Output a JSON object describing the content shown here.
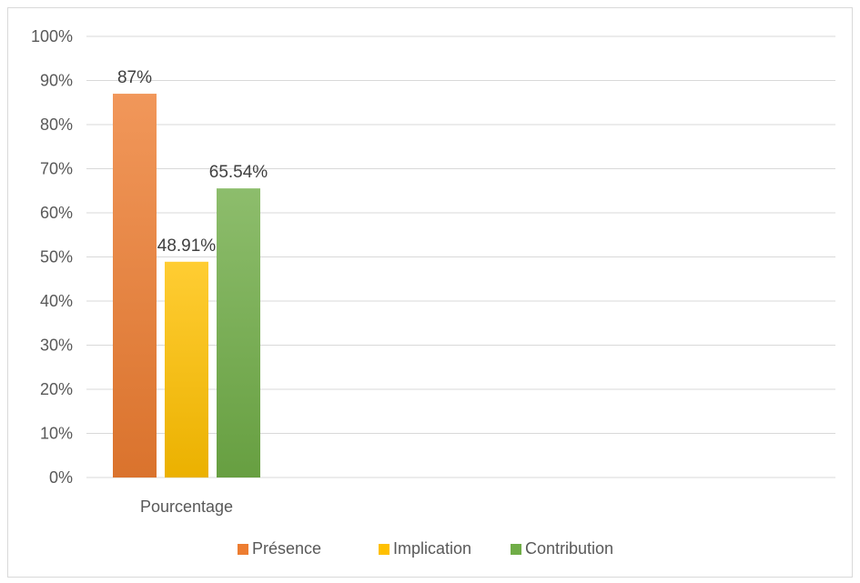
{
  "chart_data": {
    "type": "bar",
    "categories": [
      "Pourcentage"
    ],
    "series": [
      {
        "name": "Présence",
        "values": [
          87
        ],
        "label": "87%",
        "color": "#ed7d31"
      },
      {
        "name": "Implication",
        "values": [
          48.91
        ],
        "label": "48.91%",
        "color": "#ffc000"
      },
      {
        "name": "Contribution",
        "values": [
          65.54
        ],
        "label": "65.54%",
        "color": "#70ad47"
      }
    ],
    "y_ticks": [
      "0%",
      "10%",
      "20%",
      "30%",
      "40%",
      "50%",
      "60%",
      "70%",
      "80%",
      "90%",
      "100%"
    ],
    "ylim": [
      0,
      100
    ],
    "grid": true,
    "legend_position": "bottom",
    "title": "",
    "xlabel": "",
    "ylabel": ""
  }
}
